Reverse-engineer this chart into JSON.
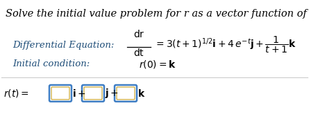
{
  "title": "Solve the initial value problem for r as a vector function of t.",
  "title_fontsize": 10.5,
  "label_de": "Differential Equation:",
  "label_ic": "Initial condition:",
  "bg_color": "#ffffff",
  "text_color": "#000000",
  "box_color": "#3f7ec4",
  "box_inner_color": "#c8a020",
  "label_color": "#1f4e79",
  "fig_width": 4.45,
  "fig_height": 1.65,
  "dpi": 100
}
